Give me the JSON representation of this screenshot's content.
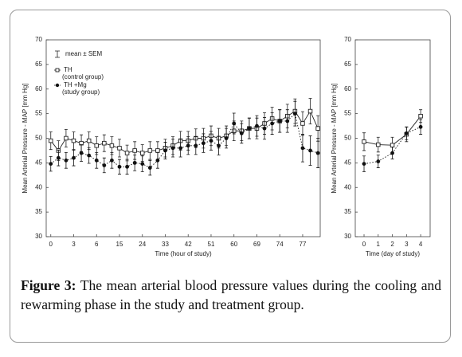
{
  "chart_data": [
    {
      "type": "line",
      "x_label": "Time  (hour of study)",
      "y_label": "Mean Arterial Pressure - MAP [mm Hg]",
      "xlim": [
        -0.6,
        35.3
      ],
      "ylim": [
        30,
        70
      ],
      "xticks": [
        {
          "value": 0,
          "label": "0"
        },
        {
          "value": 3,
          "label": "3"
        },
        {
          "value": 6,
          "label": "6"
        },
        {
          "value": 9,
          "label": "15"
        },
        {
          "value": 12,
          "label": "24"
        },
        {
          "value": 15,
          "label": "33"
        },
        {
          "value": 18,
          "label": "42"
        },
        {
          "value": 21,
          "label": "51"
        },
        {
          "value": 24,
          "label": "60"
        },
        {
          "value": 27,
          "label": "69"
        },
        {
          "value": 30,
          "label": "74"
        },
        {
          "value": 33,
          "label": "77"
        }
      ],
      "yticks": [
        30,
        35,
        40,
        45,
        50,
        55,
        60,
        65,
        70
      ],
      "legend": "top-left",
      "legend_note": "mean ± SEM",
      "x": [
        0,
        1,
        2,
        3,
        4,
        5,
        6,
        7,
        8,
        9,
        10,
        11,
        12,
        13,
        14,
        15,
        16,
        17,
        18,
        19,
        20,
        21,
        22,
        23,
        24,
        25,
        26,
        27,
        28,
        29,
        30,
        31,
        32,
        33,
        34,
        35
      ],
      "series": [
        {
          "name": "TH",
          "group": "(control group)",
          "color": "#222222",
          "marker": "square-open",
          "line_style": "solid",
          "values": [
            49.5,
            47.5,
            50,
            49.5,
            49,
            49.5,
            48.5,
            49,
            48.5,
            48,
            47,
            47.5,
            47,
            47.5,
            47.5,
            48,
            48.5,
            49.5,
            49.5,
            50,
            50,
            50.5,
            50,
            50.5,
            51.5,
            51.5,
            52,
            52,
            53,
            54,
            53.5,
            54.5,
            55.5,
            53,
            55.5,
            52
          ],
          "errors": [
            1.8,
            2,
            1.8,
            1.8,
            1.7,
            1.8,
            1.8,
            1.7,
            1.8,
            1.8,
            1.6,
            1.8,
            1.7,
            1.8,
            1.8,
            1.8,
            1.8,
            1.9,
            1.9,
            1.9,
            2,
            2,
            2,
            2,
            2,
            2,
            2.1,
            2.1,
            2.2,
            2.3,
            2.3,
            2.4,
            2.5,
            2.4,
            2.6,
            2.6
          ]
        },
        {
          "name": "TH +Mg",
          "group": "(study group)",
          "color": "#111111",
          "marker": "circle",
          "line_style": "dotted",
          "values": [
            44.8,
            46,
            45.5,
            46,
            47,
            46.5,
            45.5,
            44.5,
            45.5,
            44.2,
            44.2,
            45,
            44.8,
            44,
            45.5,
            47.5,
            48,
            48,
            48.5,
            48.5,
            49,
            49.5,
            48.5,
            50,
            53,
            51,
            52,
            52.5,
            52,
            53,
            53.5,
            53.5,
            55,
            48,
            47.5,
            47
          ],
          "errors": [
            1.5,
            1.6,
            1.6,
            1.6,
            1.7,
            1.6,
            1.6,
            1.5,
            1.6,
            1.5,
            1.5,
            1.6,
            1.6,
            1.5,
            1.6,
            1.7,
            1.8,
            1.8,
            1.8,
            1.8,
            1.9,
            1.9,
            1.9,
            2,
            2.1,
            2,
            2.1,
            2.1,
            2.2,
            2.2,
            2.3,
            2.3,
            2.5,
            2.8,
            3,
            3
          ]
        }
      ]
    },
    {
      "type": "line",
      "x_label": "Time  (day of study)",
      "y_label": "Mean Arterial Pressure - MAP [mm Hg]",
      "xlim": [
        -0.62,
        4.67
      ],
      "ylim": [
        30,
        70
      ],
      "xticks": [
        0,
        1,
        2,
        3,
        4
      ],
      "yticks": [
        30,
        35,
        40,
        45,
        50,
        55,
        60,
        65,
        70
      ],
      "x": [
        0,
        1,
        2,
        3,
        4
      ],
      "series": [
        {
          "color": "#222222",
          "marker": "square-open",
          "line_style": "solid",
          "values": [
            49.3,
            48.7,
            48.6,
            50.8,
            54.5
          ],
          "errors": [
            1.8,
            1.5,
            1.6,
            1.5,
            1.3
          ]
        },
        {
          "color": "#111111",
          "marker": "circle",
          "line_style": "dotted",
          "values": [
            44.8,
            45.3,
            47,
            51,
            52.3
          ],
          "errors": [
            1.6,
            1.3,
            1.2,
            1.3,
            1.5
          ]
        }
      ]
    }
  ],
  "caption": {
    "label": "Figure 3:",
    "text": "The mean arterial blood pressure values during the cooling and rewarming phase in the study and treatment group."
  }
}
